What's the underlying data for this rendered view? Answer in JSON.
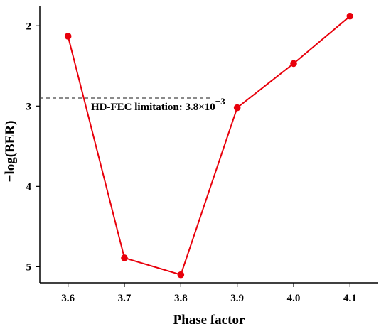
{
  "chart_data": {
    "type": "line",
    "xlabel": "Phase factor",
    "ylabel": "−log(BER)",
    "x": [
      3.6,
      3.7,
      3.8,
      3.9,
      4.0,
      4.1
    ],
    "series": [
      {
        "values": [
          2.13,
          4.89,
          5.1,
          3.02,
          2.47,
          1.88
        ],
        "color": "#e8000b"
      }
    ],
    "xticks": [
      "3.6",
      "3.7",
      "3.8",
      "3.9",
      "4.0",
      "4.1"
    ],
    "yticks": [
      "2",
      "3",
      "4",
      "5"
    ],
    "xlim": [
      3.55,
      4.15
    ],
    "ylim": [
      1.75,
      5.2
    ],
    "y_inverted": true,
    "reference_line": {
      "y": 2.9,
      "x_range": [
        3.55,
        3.85
      ],
      "style": "dashed",
      "label": "HD-FEC limitation: 3.8×10",
      "label_exponent": "−3"
    },
    "grid": false,
    "legend": false
  }
}
